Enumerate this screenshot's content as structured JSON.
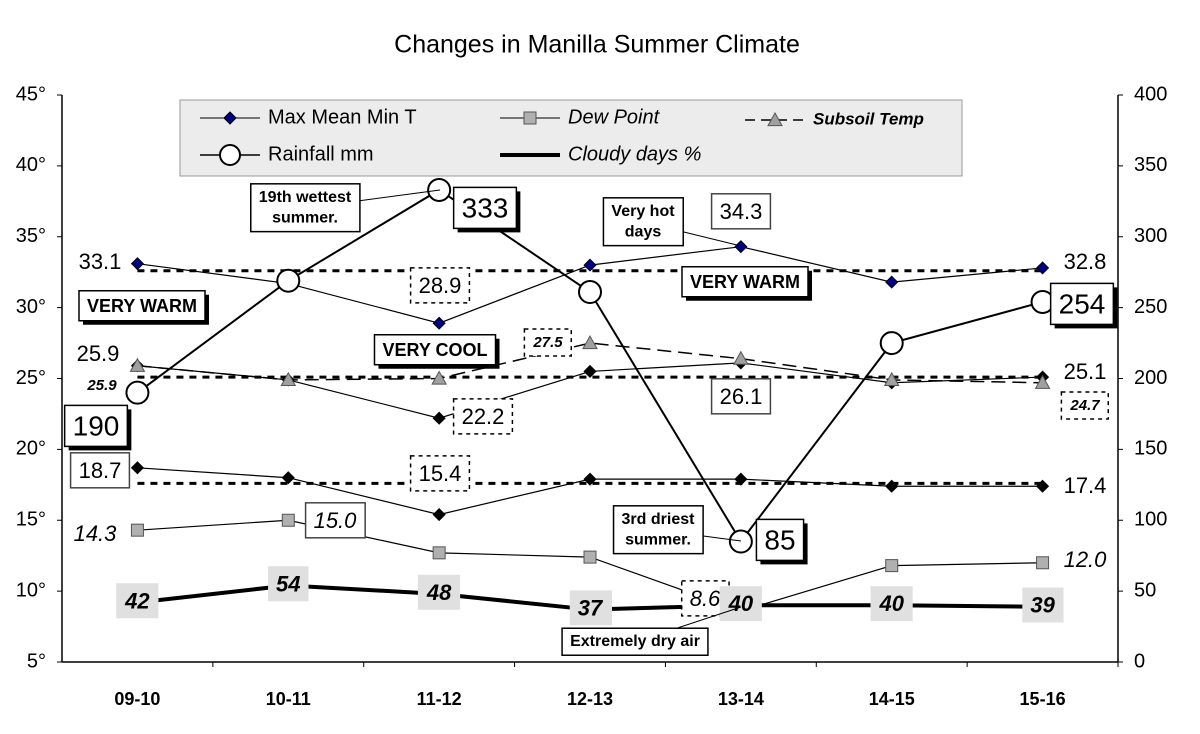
{
  "chart_data": {
    "type": "line",
    "title": "Changes in Manilla Summer Climate",
    "categories": [
      "09-10",
      "10-11",
      "11-12",
      "12-13",
      "13-14",
      "14-15",
      "15-16"
    ],
    "ylim": [
      5,
      45
    ],
    "yticks": [
      {
        "value": 5,
        "label": "5°"
      },
      {
        "value": 10,
        "label": "10°"
      },
      {
        "value": 15,
        "label": "15°"
      },
      {
        "value": 20,
        "label": "20°"
      },
      {
        "value": 25,
        "label": "25°"
      },
      {
        "value": 30,
        "label": "30°"
      },
      {
        "value": 35,
        "label": "35°"
      },
      {
        "value": 40,
        "label": "40°"
      },
      {
        "value": 45,
        "label": "45°"
      }
    ],
    "y2lim": [
      0,
      400
    ],
    "y2ticks": [
      0,
      50,
      100,
      150,
      200,
      250,
      300,
      350,
      400
    ],
    "grid": false,
    "reference_lines": [
      32.6,
      25.1,
      17.6
    ],
    "series": [
      {
        "name": "Max Mean Min T",
        "color": "#000080",
        "colors": [
          "#000080",
          "#000000",
          "#000000"
        ],
        "max": [
          33.1,
          31.7,
          28.9,
          33.0,
          34.3,
          31.8,
          32.8
        ],
        "max_labels": [
          "33.1",
          null,
          "28.9",
          null,
          "34.3",
          null,
          "32.8"
        ],
        "mean": [
          25.9,
          24.9,
          22.2,
          25.5,
          26.1,
          24.7,
          25.1
        ],
        "mean_labels": [
          "25.9",
          null,
          "22.2",
          null,
          "26.1",
          null,
          "25.1"
        ],
        "min": [
          18.7,
          18.0,
          15.4,
          17.9,
          17.9,
          17.4,
          17.4
        ],
        "min_labels": [
          "18.7",
          null,
          "15.4",
          null,
          null,
          null,
          "17.4"
        ]
      },
      {
        "name": "Dew Point",
        "color": "#b0b0b0",
        "values": [
          14.3,
          15.0,
          12.7,
          12.4,
          8.6,
          11.8,
          12.0
        ],
        "value_labels": [
          "14.3",
          "15.0",
          null,
          null,
          "8.6",
          null,
          "12.0"
        ]
      },
      {
        "name": "Subsoil Temp",
        "color": "#a0a0a0",
        "values": [
          25.9,
          24.9,
          25.0,
          27.5,
          26.4,
          24.9,
          24.7
        ],
        "value_labels": [
          "25.9",
          null,
          null,
          "27.5",
          null,
          null,
          "24.7"
        ]
      },
      {
        "name": "Rainfall mm",
        "color": "#ffffff",
        "axis": "y2",
        "values": [
          190,
          269,
          333,
          261,
          85,
          225,
          254
        ],
        "value_labels": [
          "190",
          null,
          "333",
          null,
          "85",
          null,
          "254"
        ]
      },
      {
        "name": "Cloudy days %",
        "color": "#000000",
        "axis": "y2",
        "values": [
          42,
          54,
          48,
          37,
          40,
          40,
          39
        ],
        "value_labels": [
          "42",
          "54",
          "48",
          "37",
          "40",
          "40",
          "39"
        ]
      }
    ],
    "annotations": [
      {
        "lines": [
          "19th wettest",
          "summer."
        ]
      },
      {
        "lines": [
          "Very hot",
          "days"
        ]
      },
      {
        "lines": [
          "3rd driest",
          "summer."
        ]
      },
      {
        "lines": [
          "Extremely dry air"
        ]
      },
      {
        "lines": [
          "VERY WARM"
        ]
      },
      {
        "lines": [
          "VERY WARM"
        ]
      },
      {
        "lines": [
          "VERY COOL"
        ]
      }
    ]
  }
}
